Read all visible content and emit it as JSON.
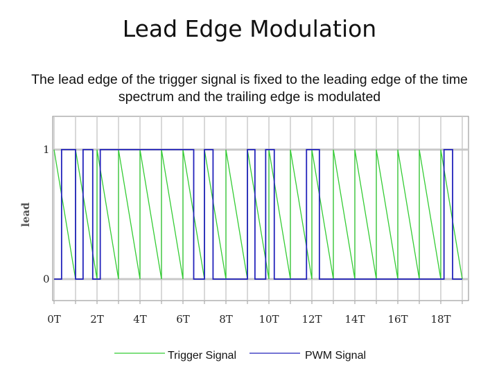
{
  "slide": {
    "title": "Lead Edge Modulation",
    "subtitle": "The lead edge of the trigger signal is fixed to the leading edge of the time spectrum and the trailing edge is modulated"
  },
  "chart_data": {
    "type": "line",
    "ylabel": "lead",
    "xlim": [
      0,
      19
    ],
    "ylim": [
      0,
      1
    ],
    "x_ticks": [
      "0T",
      "2T",
      "4T",
      "6T",
      "8T",
      "10T",
      "12T",
      "14T",
      "16T",
      "18T"
    ],
    "y_ticks": [
      "0",
      "1"
    ],
    "grid": true,
    "legend_position": "bottom",
    "colors": {
      "trigger": "#33cc33",
      "pwm": "#2222bb"
    },
    "series": [
      {
        "name": "Trigger Signal",
        "description_values": "sawtooth ramp from 1 to 0 over each period T, resetting to 1 at each integer T",
        "x": [
          0,
          1,
          1,
          2,
          2,
          3,
          3,
          4,
          4,
          5,
          5,
          6,
          6,
          7,
          7,
          8,
          8,
          9,
          9,
          10,
          10,
          11,
          11,
          12,
          12,
          13,
          13,
          14,
          14,
          15,
          15,
          16,
          16,
          17,
          17,
          18,
          18,
          19
        ],
        "y": [
          1,
          0,
          1,
          0,
          1,
          0,
          1,
          0,
          1,
          0,
          1,
          0,
          1,
          0,
          1,
          0,
          1,
          0,
          1,
          0,
          1,
          0,
          1,
          0,
          1,
          0,
          1,
          0,
          1,
          0,
          1,
          0,
          1,
          0,
          1,
          0,
          1,
          0
        ]
      },
      {
        "name": "PWM Signal",
        "x": [
          0,
          0.35,
          0.35,
          1.0,
          1.0,
          1.35,
          1.35,
          1.8,
          1.8,
          2.15,
          2.15,
          6.5,
          6.5,
          7.0,
          7.0,
          7.4,
          7.4,
          9.0,
          9.0,
          9.35,
          9.35,
          9.85,
          9.85,
          10.25,
          10.25,
          11.75,
          11.75,
          12.35,
          12.35,
          18.15,
          18.15,
          18.55,
          18.55,
          19
        ],
        "y": [
          0,
          0,
          1,
          1,
          0,
          0,
          1,
          1,
          0,
          0,
          1,
          1,
          0,
          0,
          1,
          1,
          0,
          0,
          1,
          1,
          0,
          0,
          1,
          1,
          0,
          0,
          1,
          1,
          0,
          0,
          1,
          1,
          0,
          0
        ]
      }
    ]
  }
}
